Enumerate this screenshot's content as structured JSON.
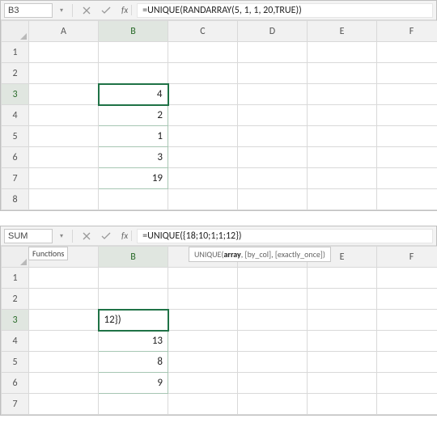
{
  "panel1": {
    "namebox": "B3",
    "formula": "=UNIQUE(RANDARRAY(5, 1, 1, 20,TRUE))",
    "columns": [
      "A",
      "B",
      "C",
      "D",
      "E",
      "F"
    ],
    "rows": [
      "1",
      "2",
      "3",
      "4",
      "5",
      "6",
      "7",
      "8"
    ],
    "active": {
      "col": "B",
      "row": "3"
    },
    "cells": {
      "B3": "4",
      "B4": "2",
      "B5": "1",
      "B6": "3",
      "B7": "19"
    },
    "spill": [
      "B3",
      "B4",
      "B5",
      "B6",
      "B7"
    ]
  },
  "panel2": {
    "namebox": "SUM",
    "formula": "=UNIQUE({18;10;1;1;12})",
    "columns": [
      "A",
      "B",
      "C",
      "D",
      "E",
      "F"
    ],
    "rows": [
      "1",
      "2",
      "3",
      "4",
      "5",
      "6",
      "7"
    ],
    "active": {
      "col": "B",
      "row": "3"
    },
    "cells": {
      "B3": "12})",
      "B4": "13",
      "B5": "8",
      "B6": "9"
    },
    "spill": [
      "B3",
      "B4",
      "B5",
      "B6"
    ],
    "functions_label": "Functions",
    "hint_fn": "UNIQUE(",
    "hint_bold": "array",
    "hint_rest": ", [by_col], [exactly_once])"
  },
  "icons": {
    "fx_label": "fx"
  }
}
